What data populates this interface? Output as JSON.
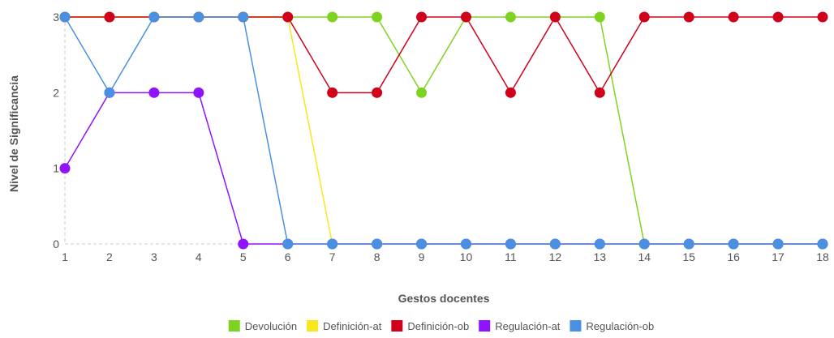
{
  "chart_data": {
    "type": "line",
    "title": "",
    "xlabel": "Gestos docentes",
    "ylabel": "Nivel de Significancia",
    "x": [
      1,
      2,
      3,
      4,
      5,
      6,
      7,
      8,
      9,
      10,
      11,
      12,
      13,
      14,
      15,
      16,
      17,
      18
    ],
    "ylim": [
      0,
      3
    ],
    "y_ticks": [
      0,
      1,
      2,
      3
    ],
    "grid": false,
    "legend_position": "bottom",
    "series": [
      {
        "name": "Devolución",
        "color": "#7ed321",
        "values": [
          3,
          3,
          3,
          3,
          3,
          3,
          3,
          3,
          2,
          3,
          3,
          3,
          3,
          0,
          0,
          0,
          0,
          0
        ]
      },
      {
        "name": "Definición-at",
        "color": "#f8e71c",
        "values": [
          3,
          3,
          3,
          3,
          3,
          3,
          0,
          0,
          0,
          0,
          0,
          0,
          0,
          0,
          0,
          0,
          0,
          0
        ]
      },
      {
        "name": "Definición-ob",
        "color": "#d0021b",
        "values": [
          3,
          3,
          3,
          3,
          3,
          3,
          2,
          2,
          3,
          3,
          2,
          3,
          2,
          3,
          3,
          3,
          3,
          3
        ]
      },
      {
        "name": "Regulación-at",
        "color": "#9013fe",
        "values": [
          1,
          2,
          2,
          2,
          0,
          0,
          0,
          0,
          0,
          0,
          0,
          0,
          0,
          0,
          0,
          0,
          0,
          0
        ]
      },
      {
        "name": "Regulación-ob",
        "color": "#4a90e2",
        "values": [
          3,
          2,
          3,
          3,
          3,
          0,
          0,
          0,
          0,
          0,
          0,
          0,
          0,
          0,
          0,
          0,
          0,
          0
        ]
      }
    ]
  }
}
